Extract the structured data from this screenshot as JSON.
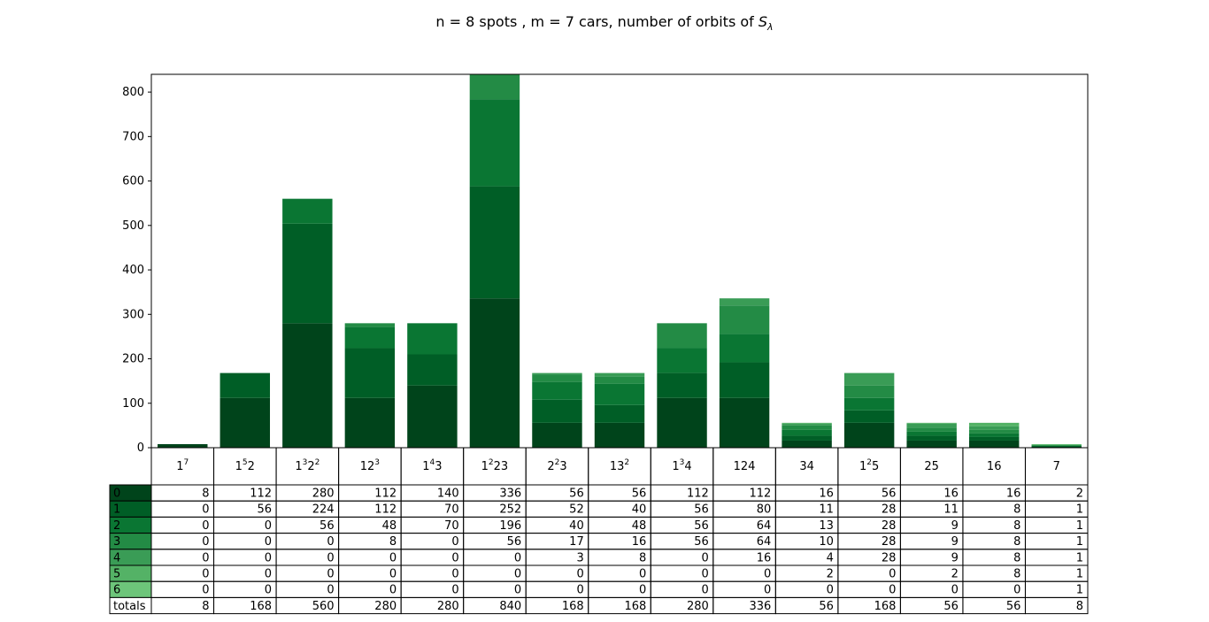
{
  "chart_data": {
    "type": "bar",
    "stacked": true,
    "title_prefix": "n = 8 spots , m = 7 cars, number of orbits of ",
    "title_symbol": "S",
    "title_subscript": "λ",
    "ylim": [
      0,
      840
    ],
    "yticks": [
      0,
      100,
      200,
      300,
      400,
      500,
      600,
      700,
      800
    ],
    "categories": [
      {
        "base": "1",
        "sup": "7",
        "rest": ""
      },
      {
        "base": "1",
        "sup": "5",
        "rest": "2"
      },
      {
        "base": "1",
        "sup": "3",
        "rest": "2",
        "sup2": "2"
      },
      {
        "base": "12",
        "sup": "3",
        "rest": ""
      },
      {
        "base": "1",
        "sup": "4",
        "rest": "3"
      },
      {
        "base": "1",
        "sup": "2",
        "rest": "23"
      },
      {
        "base": "2",
        "sup": "2",
        "rest": "3"
      },
      {
        "base": "13",
        "sup": "2",
        "rest": ""
      },
      {
        "base": "1",
        "sup": "3",
        "rest": "4"
      },
      {
        "base": "124",
        "sup": "",
        "rest": ""
      },
      {
        "base": "34",
        "sup": "",
        "rest": ""
      },
      {
        "base": "1",
        "sup": "2",
        "rest": "5"
      },
      {
        "base": "25",
        "sup": "",
        "rest": ""
      },
      {
        "base": "16",
        "sup": "",
        "rest": ""
      },
      {
        "base": "7",
        "sup": "",
        "rest": ""
      }
    ],
    "series": [
      {
        "name": "0",
        "color": "#00441b",
        "values": [
          8,
          112,
          280,
          112,
          140,
          336,
          56,
          56,
          112,
          112,
          16,
          56,
          16,
          16,
          2
        ]
      },
      {
        "name": "1",
        "color": "#005e26",
        "values": [
          0,
          56,
          224,
          112,
          70,
          252,
          52,
          40,
          56,
          80,
          11,
          28,
          11,
          8,
          1
        ]
      },
      {
        "name": "2",
        "color": "#0a7633",
        "values": [
          0,
          0,
          56,
          48,
          70,
          196,
          40,
          48,
          56,
          64,
          13,
          28,
          9,
          8,
          1
        ]
      },
      {
        "name": "3",
        "color": "#238b45",
        "values": [
          0,
          0,
          0,
          8,
          0,
          56,
          17,
          16,
          56,
          64,
          10,
          28,
          9,
          8,
          1
        ]
      },
      {
        "name": "4",
        "color": "#3a9c56",
        "values": [
          0,
          0,
          0,
          0,
          0,
          0,
          3,
          8,
          0,
          16,
          4,
          28,
          9,
          8,
          1
        ]
      },
      {
        "name": "5",
        "color": "#54b266",
        "values": [
          0,
          0,
          0,
          0,
          0,
          0,
          0,
          0,
          0,
          0,
          2,
          0,
          2,
          8,
          1
        ]
      },
      {
        "name": "6",
        "color": "#6dc57a",
        "values": [
          0,
          0,
          0,
          0,
          0,
          0,
          0,
          0,
          0,
          0,
          0,
          0,
          0,
          0,
          1
        ]
      }
    ],
    "totals_label": "totals",
    "totals": [
      8,
      168,
      560,
      280,
      280,
      840,
      168,
      168,
      280,
      336,
      56,
      168,
      56,
      56,
      8
    ]
  }
}
